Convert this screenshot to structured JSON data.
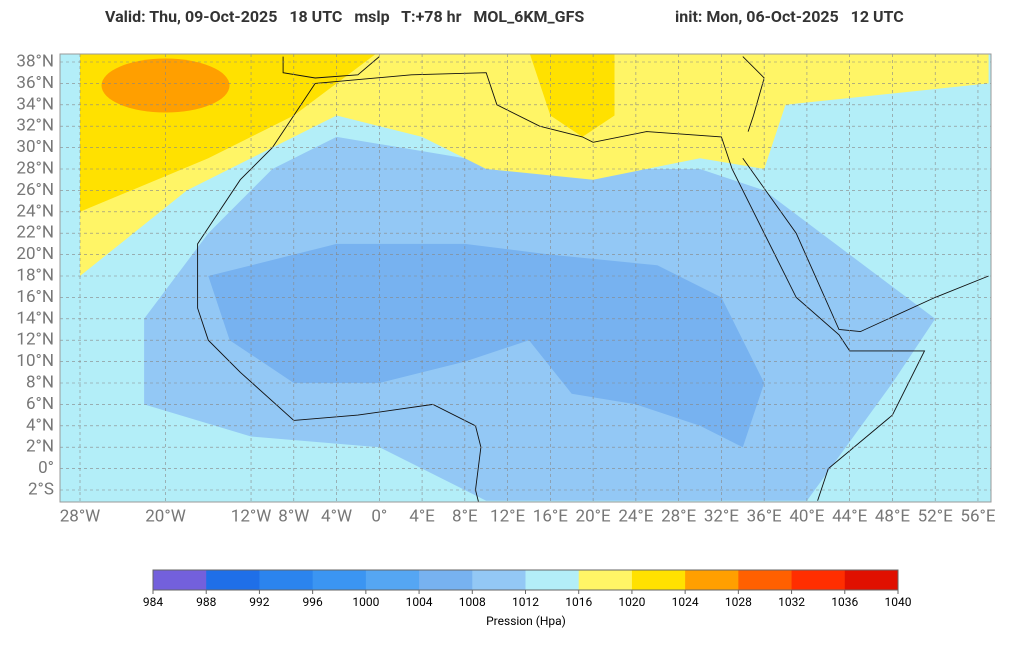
{
  "header": {
    "title_left": "Valid: Thu, 09-Oct-2025   18 UTC   mslp   T:+78 hr   MOL_6KM_GFS",
    "title_right": "init: Mon, 06-Oct-2025   12 UTC"
  },
  "map": {
    "lat_ticks": [
      {
        "value": 38,
        "label": "38°N"
      },
      {
        "value": 36,
        "label": "36°N"
      },
      {
        "value": 34,
        "label": "34°N"
      },
      {
        "value": 32,
        "label": "32°N"
      },
      {
        "value": 30,
        "label": "30°N"
      },
      {
        "value": 28,
        "label": "28°N"
      },
      {
        "value": 26,
        "label": "26°N"
      },
      {
        "value": 24,
        "label": "24°N"
      },
      {
        "value": 22,
        "label": "22°N"
      },
      {
        "value": 20,
        "label": "20°N"
      },
      {
        "value": 18,
        "label": "18°N"
      },
      {
        "value": 16,
        "label": "16°N"
      },
      {
        "value": 14,
        "label": "14°N"
      },
      {
        "value": 12,
        "label": "12°N"
      },
      {
        "value": 10,
        "label": "10°N"
      },
      {
        "value": 8,
        "label": "8°N"
      },
      {
        "value": 6,
        "label": "6°N"
      },
      {
        "value": 4,
        "label": "4°N"
      },
      {
        "value": 2,
        "label": "2°N"
      },
      {
        "value": 0,
        "label": "0°"
      },
      {
        "value": -2,
        "label": "2°S"
      }
    ],
    "lon_ticks": [
      {
        "value": -28,
        "label": "28°W"
      },
      {
        "value": -20,
        "label": "20°W"
      },
      {
        "value": -12,
        "label": "12°W"
      },
      {
        "value": -8,
        "label": "8°W"
      },
      {
        "value": -4,
        "label": "4°W"
      },
      {
        "value": 0,
        "label": "0°"
      },
      {
        "value": 4,
        "label": "4°E"
      },
      {
        "value": 8,
        "label": "8°E"
      },
      {
        "value": 12,
        "label": "12°E"
      },
      {
        "value": 16,
        "label": "16°E"
      },
      {
        "value": 20,
        "label": "20°E"
      },
      {
        "value": 24,
        "label": "24°E"
      },
      {
        "value": 28,
        "label": "28°E"
      },
      {
        "value": 32,
        "label": "32°E"
      },
      {
        "value": 36,
        "label": "36°E"
      },
      {
        "value": 40,
        "label": "40°E"
      },
      {
        "value": 44,
        "label": "44°E"
      },
      {
        "value": 48,
        "label": "48°E"
      },
      {
        "value": 52,
        "label": "52°E"
      },
      {
        "value": 56,
        "label": "56°E"
      }
    ]
  },
  "colorbar": {
    "ticks": [
      984,
      988,
      992,
      996,
      1000,
      1004,
      1008,
      1012,
      1016,
      1020,
      1024,
      1028,
      1032,
      1036,
      1040
    ],
    "colors": [
      "#7360dc",
      "#1f6fe8",
      "#2b84ee",
      "#3b95f2",
      "#55a6f3",
      "#77b2f0",
      "#93c8f5",
      "#b3eef8",
      "#fff566",
      "#ffe100",
      "#ff9f00",
      "#ff6000",
      "#ff2e00",
      "#e01000"
    ],
    "label": "Pression (Hpa)"
  }
}
